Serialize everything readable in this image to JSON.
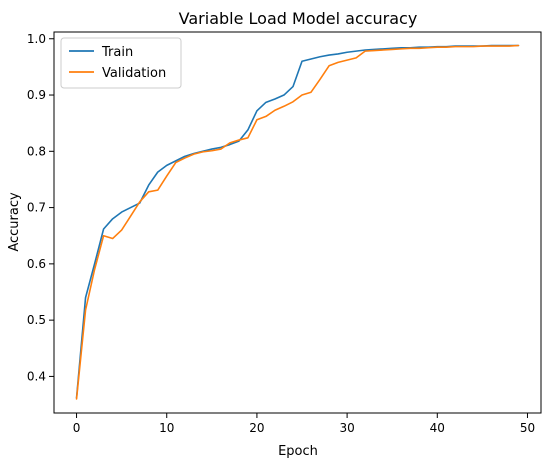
{
  "chart_data": {
    "type": "line",
    "title": "Variable Load Model accuracy",
    "xlabel": "Epoch",
    "ylabel": "Accuracy",
    "xlim": [
      -2.5,
      51.5
    ],
    "ylim": [
      0.335,
      1.012
    ],
    "xticks": [
      0,
      10,
      20,
      30,
      40,
      50
    ],
    "yticks": [
      0.4,
      0.5,
      0.6,
      0.7,
      0.8,
      0.9,
      1.0
    ],
    "xtick_labels": [
      "0",
      "10",
      "20",
      "30",
      "40",
      "50"
    ],
    "ytick_labels": [
      "0.4",
      "0.5",
      "0.6",
      "0.7",
      "0.8",
      "0.9",
      "1.0"
    ],
    "grid": false,
    "legend_position": "top-left",
    "x": [
      0,
      1,
      2,
      3,
      4,
      5,
      6,
      7,
      8,
      9,
      10,
      11,
      12,
      13,
      14,
      15,
      16,
      17,
      18,
      19,
      20,
      21,
      22,
      23,
      24,
      25,
      26,
      27,
      28,
      29,
      30,
      31,
      32,
      33,
      34,
      35,
      36,
      37,
      38,
      39,
      40,
      41,
      42,
      43,
      44,
      45,
      46,
      47,
      48,
      49
    ],
    "series": [
      {
        "name": "Train",
        "color": "#1f77b4",
        "values": [
          0.362,
          0.54,
          0.6,
          0.662,
          0.68,
          0.692,
          0.7,
          0.708,
          0.74,
          0.763,
          0.775,
          0.783,
          0.791,
          0.796,
          0.8,
          0.804,
          0.807,
          0.812,
          0.818,
          0.838,
          0.872,
          0.887,
          0.893,
          0.9,
          0.915,
          0.96,
          0.964,
          0.968,
          0.971,
          0.973,
          0.976,
          0.978,
          0.98,
          0.981,
          0.982,
          0.983,
          0.984,
          0.984,
          0.985,
          0.985,
          0.986,
          0.986,
          0.987,
          0.987,
          0.987,
          0.987,
          0.988,
          0.988,
          0.988,
          0.988
        ]
      },
      {
        "name": "Validation",
        "color": "#ff7f0e",
        "values": [
          0.36,
          0.518,
          0.59,
          0.65,
          0.645,
          0.66,
          0.685,
          0.71,
          0.728,
          0.731,
          0.756,
          0.78,
          0.788,
          0.795,
          0.799,
          0.801,
          0.804,
          0.815,
          0.82,
          0.824,
          0.856,
          0.862,
          0.873,
          0.88,
          0.888,
          0.9,
          0.905,
          0.928,
          0.952,
          0.958,
          0.962,
          0.966,
          0.978,
          0.979,
          0.98,
          0.981,
          0.982,
          0.983,
          0.983,
          0.984,
          0.985,
          0.985,
          0.986,
          0.986,
          0.986,
          0.987,
          0.987,
          0.987,
          0.987,
          0.988
        ]
      }
    ]
  }
}
